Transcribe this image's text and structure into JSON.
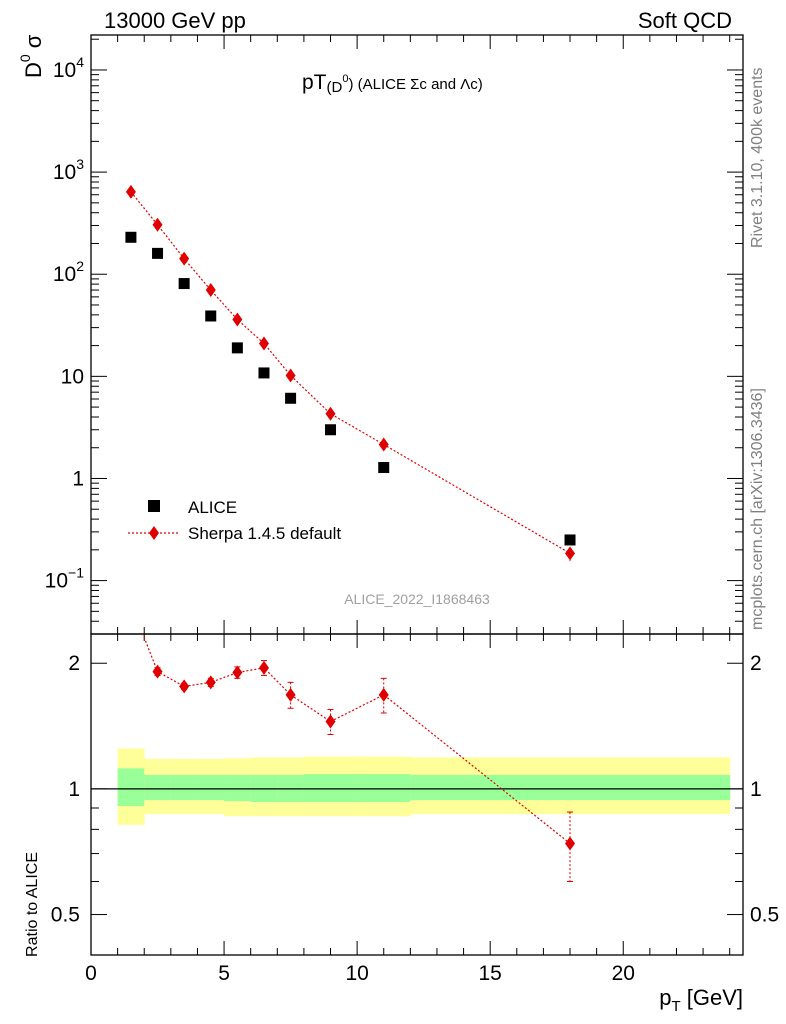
{
  "header": {
    "left": "13000 GeV pp",
    "right": "Soft QCD"
  },
  "side": {
    "rivet": "Rivet 3.1.10,  400k events",
    "mcplots": "mcplots.cern.ch [arXiv:1306.3436]"
  },
  "watermark": "ALICE_2022_I1868463",
  "chart_data": [
    {
      "type": "scatter",
      "title": "pT(D⁰) (ALICE Σc and Λc)",
      "title_parts": {
        "main": "pT",
        "sub": "(D",
        "sup": "0",
        "tail": ") (ALICE Σc and Λc)"
      },
      "ylabel": "D⁰ σ",
      "ylabel_parts": {
        "main": "D",
        "sup": "0",
        "tail": "σ"
      },
      "xlabel": "",
      "yscale": "log",
      "xlim": [
        0,
        24.5
      ],
      "ylim": [
        0.03,
        22000
      ],
      "y_ticks": [
        {
          "value": 10000,
          "base": "10",
          "exp": "4"
        },
        {
          "value": 1000,
          "base": "10",
          "exp": "3"
        },
        {
          "value": 100,
          "base": "10",
          "exp": "2"
        },
        {
          "value": 10,
          "base": "10",
          "exp": ""
        },
        {
          "value": 1,
          "base": "1",
          "exp": ""
        },
        {
          "value": 0.1,
          "base": "10",
          "exp": "−1"
        }
      ],
      "legend_position": "bottom-left",
      "series": [
        {
          "name": "ALICE",
          "marker": "square",
          "color": "#000000",
          "x": [
            1.5,
            2.5,
            3.5,
            4.5,
            5.5,
            6.5,
            7.5,
            9,
            11,
            18
          ],
          "y": [
            230,
            160,
            81,
            39,
            19,
            10.8,
            6.1,
            3.0,
            1.28,
            0.25
          ]
        },
        {
          "name": "Sherpa 1.4.5 default",
          "marker": "diamond",
          "line": "dotted",
          "color": "#e00000",
          "x": [
            1.5,
            2.5,
            3.5,
            4.5,
            5.5,
            6.5,
            7.5,
            9,
            11,
            18
          ],
          "y": [
            640,
            305,
            142,
            70,
            36,
            21,
            10.2,
            4.3,
            2.15,
            0.185
          ]
        }
      ]
    },
    {
      "type": "line",
      "ylabel": "Ratio to ALICE",
      "xlabel": "p",
      "xlabel_sub": "T",
      "xlabel_unit": "[GeV]",
      "yscale": "log",
      "xlim": [
        0,
        24.5
      ],
      "ylim": [
        0.4,
        2.35
      ],
      "x_ticks": [
        "0",
        "5",
        "10",
        "15",
        "20"
      ],
      "x_tick_values": [
        0,
        5,
        10,
        15,
        20
      ],
      "y_ticks": [
        "2",
        "1",
        "0.5"
      ],
      "y_tick_values": [
        2,
        1,
        0.5
      ],
      "bands": {
        "bins": [
          [
            1,
            2
          ],
          [
            2,
            3
          ],
          [
            3,
            4
          ],
          [
            4,
            5
          ],
          [
            5,
            6
          ],
          [
            6,
            7
          ],
          [
            7,
            8
          ],
          [
            8,
            10
          ],
          [
            10,
            12
          ],
          [
            12,
            24
          ]
        ],
        "inner": [
          [
            0.91,
            1.12
          ],
          [
            0.94,
            1.08
          ],
          [
            0.94,
            1.08
          ],
          [
            0.94,
            1.08
          ],
          [
            0.935,
            1.08
          ],
          [
            0.93,
            1.08
          ],
          [
            0.93,
            1.08
          ],
          [
            0.93,
            1.085
          ],
          [
            0.93,
            1.085
          ],
          [
            0.94,
            1.08
          ]
        ],
        "outer": [
          [
            0.82,
            1.25
          ],
          [
            0.87,
            1.18
          ],
          [
            0.87,
            1.18
          ],
          [
            0.87,
            1.18
          ],
          [
            0.86,
            1.185
          ],
          [
            0.86,
            1.19
          ],
          [
            0.86,
            1.19
          ],
          [
            0.86,
            1.195
          ],
          [
            0.86,
            1.195
          ],
          [
            0.87,
            1.19
          ]
        ]
      },
      "series": [
        {
          "name": "Sherpa 1.4.5 default",
          "marker": "diamond",
          "line": "dotted",
          "color": "#e00000",
          "x": [
            2.5,
            3.5,
            4.5,
            5.5,
            6.5,
            7.5,
            9,
            11,
            18
          ],
          "y": [
            1.91,
            1.76,
            1.8,
            1.9,
            1.95,
            1.68,
            1.45,
            1.68,
            0.74
          ],
          "yerr": [
            0.04,
            0.03,
            0.04,
            0.06,
            0.08,
            0.12,
            0.1,
            0.16,
            0.14
          ],
          "offscale_start": [
            1.5,
            2.78
          ]
        }
      ]
    }
  ]
}
